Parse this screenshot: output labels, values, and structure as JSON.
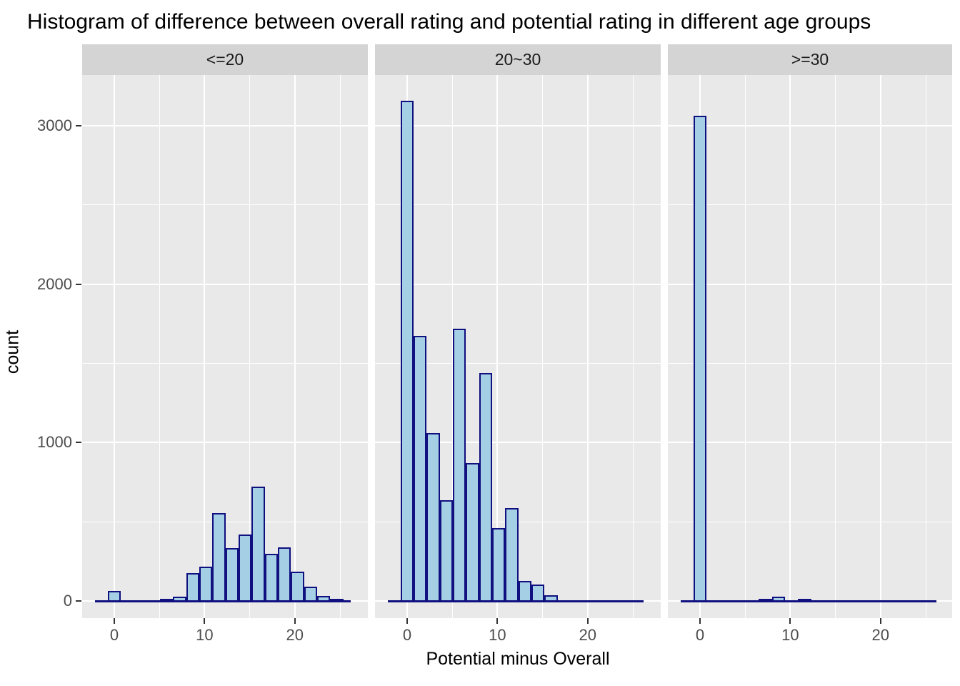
{
  "title": "Histogram of difference between overall rating and potential rating in different age groups",
  "y_axis": {
    "label": "count",
    "tick_labels": [
      "0",
      "1000",
      "2000",
      "3000"
    ],
    "tick_values": [
      0,
      1000,
      2000,
      3000
    ]
  },
  "x_axis": {
    "label": "Potential minus Overall",
    "tick_labels": [
      "0",
      "10",
      "20"
    ],
    "tick_values": [
      0,
      10,
      20
    ]
  },
  "colors": {
    "bar_fill": "#a5cfe4",
    "bar_border": "#101080",
    "panel_background": "#e9e9e9",
    "strip_background": "#d4d4d4",
    "gridline": "#ffffff",
    "tick_label": "#4d4d4d",
    "axis_title": "#000000"
  },
  "chart_data": {
    "type": "bar",
    "subtype": "faceted-histogram",
    "title": "Histogram of difference between overall rating and potential rating in different age groups",
    "xlabel": "Potential minus Overall",
    "ylabel": "count",
    "xlim": [
      -3.5,
      28.1
    ],
    "ylim": [
      0,
      3320
    ],
    "binwidth": 1.45,
    "grid": "on",
    "legend_position": "none",
    "facets": [
      {
        "label": "<=20",
        "bars": [
          {
            "x": -1.45,
            "count": 2
          },
          {
            "x": 0,
            "count": 65
          },
          {
            "x": 1.45,
            "count": 4
          },
          {
            "x": 2.9,
            "count": 6
          },
          {
            "x": 4.35,
            "count": 3
          },
          {
            "x": 5.8,
            "count": 14
          },
          {
            "x": 7.25,
            "count": 25
          },
          {
            "x": 8.7,
            "count": 175
          },
          {
            "x": 10.15,
            "count": 218
          },
          {
            "x": 11.6,
            "count": 556
          },
          {
            "x": 13.05,
            "count": 335
          },
          {
            "x": 14.5,
            "count": 420
          },
          {
            "x": 15.95,
            "count": 720
          },
          {
            "x": 17.4,
            "count": 298
          },
          {
            "x": 18.85,
            "count": 340
          },
          {
            "x": 20.3,
            "count": 183
          },
          {
            "x": 21.75,
            "count": 88
          },
          {
            "x": 23.2,
            "count": 30
          },
          {
            "x": 24.65,
            "count": 12
          },
          {
            "x": 26.1,
            "count": 6
          }
        ]
      },
      {
        "label": "20~30",
        "bars": [
          {
            "x": -1.45,
            "count": 2
          },
          {
            "x": 0,
            "count": 3160
          },
          {
            "x": 1.45,
            "count": 1675
          },
          {
            "x": 2.9,
            "count": 1060
          },
          {
            "x": 4.35,
            "count": 635
          },
          {
            "x": 5.8,
            "count": 1720
          },
          {
            "x": 7.25,
            "count": 870
          },
          {
            "x": 8.7,
            "count": 1440
          },
          {
            "x": 10.15,
            "count": 460
          },
          {
            "x": 11.6,
            "count": 585
          },
          {
            "x": 13.05,
            "count": 125
          },
          {
            "x": 14.5,
            "count": 105
          },
          {
            "x": 15.95,
            "count": 38
          },
          {
            "x": 17.4,
            "count": 6
          },
          {
            "x": 18.85,
            "count": 4
          },
          {
            "x": 20.3,
            "count": 3
          },
          {
            "x": 21.75,
            "count": 3
          },
          {
            "x": 23.2,
            "count": 2
          },
          {
            "x": 24.65,
            "count": 2
          },
          {
            "x": 26.1,
            "count": 2
          }
        ]
      },
      {
        "label": ">=30",
        "bars": [
          {
            "x": -1.45,
            "count": 3
          },
          {
            "x": 0,
            "count": 3065
          },
          {
            "x": 1.45,
            "count": 5
          },
          {
            "x": 2.9,
            "count": 4
          },
          {
            "x": 4.35,
            "count": 4
          },
          {
            "x": 5.8,
            "count": 5
          },
          {
            "x": 7.25,
            "count": 12
          },
          {
            "x": 8.7,
            "count": 25
          },
          {
            "x": 10.15,
            "count": 8
          },
          {
            "x": 11.6,
            "count": 14
          },
          {
            "x": 13.05,
            "count": 6
          },
          {
            "x": 14.5,
            "count": 4
          },
          {
            "x": 15.95,
            "count": 3
          },
          {
            "x": 17.4,
            "count": 3
          },
          {
            "x": 18.85,
            "count": 3
          },
          {
            "x": 20.3,
            "count": 2
          },
          {
            "x": 21.75,
            "count": 2
          },
          {
            "x": 23.2,
            "count": 2
          },
          {
            "x": 24.65,
            "count": 2
          },
          {
            "x": 26.1,
            "count": 2
          }
        ]
      }
    ]
  }
}
